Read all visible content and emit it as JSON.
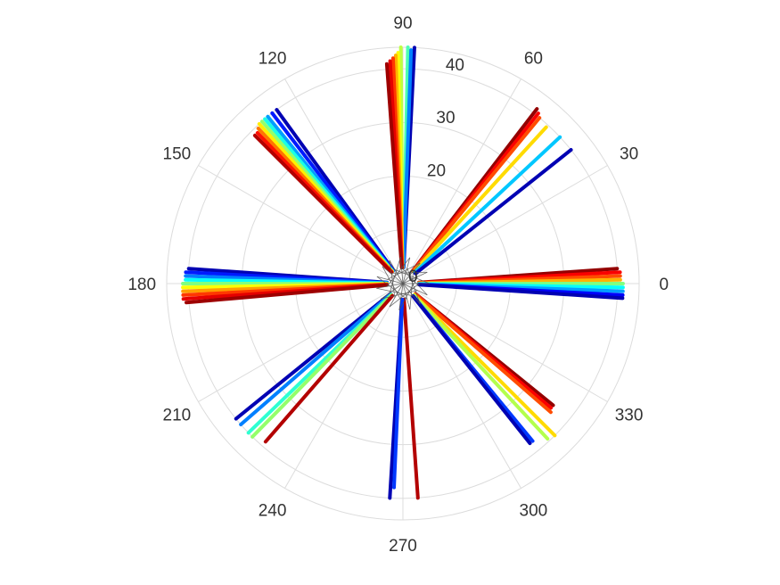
{
  "chart_data": {
    "type": "scatter",
    "subtype": "polar",
    "title": "",
    "angle_ticks": [
      0,
      30,
      60,
      90,
      120,
      150,
      180,
      210,
      240,
      270,
      300,
      330
    ],
    "angle_tick_labels": [
      "0",
      "30",
      "60",
      "90",
      "120",
      "150",
      "180",
      "210",
      "240",
      "270",
      "300",
      "330"
    ],
    "radial_ticks": [
      0,
      10,
      20,
      30,
      40
    ],
    "radial_tick_labels": [
      "0",
      "",
      "20",
      "30",
      "40"
    ],
    "radial_label_angle_deg": 80,
    "r_range": [
      0,
      44
    ],
    "grid": true,
    "colormap": "jet",
    "color_range": [
      0,
      1
    ],
    "rays": [
      {
        "angle": 90.5,
        "r_start": 3,
        "r_end": 44,
        "color_value": 0.56
      },
      {
        "angle": 88.8,
        "r_start": 3,
        "r_end": 44,
        "color_value": 0.45
      },
      {
        "angle": 87.2,
        "r_start": 3,
        "r_end": 44,
        "color_value": 0.05
      },
      {
        "angle": 88.0,
        "r_start": 3,
        "r_end": 43.5,
        "color_value": 0.25
      },
      {
        "angle": 91.2,
        "r_start": 3,
        "r_end": 43,
        "color_value": 0.62
      },
      {
        "angle": 91.8,
        "r_start": 3,
        "r_end": 42.5,
        "color_value": 0.7
      },
      {
        "angle": 92.5,
        "r_start": 3,
        "r_end": 42,
        "color_value": 0.82
      },
      {
        "angle": 93.3,
        "r_start": 3,
        "r_end": 41.5,
        "color_value": 0.9
      },
      {
        "angle": 94.2,
        "r_start": 3,
        "r_end": 41,
        "color_value": 0.97
      },
      {
        "angle": 52.5,
        "r_start": 3,
        "r_end": 41,
        "color_value": 0.98
      },
      {
        "angle": 51.5,
        "r_start": 3,
        "r_end": 40.5,
        "color_value": 0.88
      },
      {
        "angle": 50.5,
        "r_start": 3,
        "r_end": 40,
        "color_value": 0.8
      },
      {
        "angle": 47.5,
        "r_start": 3,
        "r_end": 39.5,
        "color_value": 0.66
      },
      {
        "angle": 43.0,
        "r_start": 3,
        "r_end": 40,
        "color_value": 0.32
      },
      {
        "angle": 38.5,
        "r_start": 3,
        "r_end": 40,
        "color_value": 0.05
      },
      {
        "angle": 4.0,
        "r_start": 3,
        "r_end": 40,
        "color_value": 0.98
      },
      {
        "angle": 3.0,
        "r_start": 3,
        "r_end": 40.5,
        "color_value": 0.88
      },
      {
        "angle": 2.0,
        "r_start": 3,
        "r_end": 40.5,
        "color_value": 0.8
      },
      {
        "angle": 1.0,
        "r_start": 3,
        "r_end": 40.5,
        "color_value": 0.7
      },
      {
        "angle": 0.0,
        "r_start": 3,
        "r_end": 41,
        "color_value": 0.5
      },
      {
        "angle": -1.0,
        "r_start": 3,
        "r_end": 41,
        "color_value": 0.38
      },
      {
        "angle": -2.0,
        "r_start": 3,
        "r_end": 41,
        "color_value": 0.28
      },
      {
        "angle": -3.0,
        "r_start": 3,
        "r_end": 41,
        "color_value": 0.12
      },
      {
        "angle": -3.8,
        "r_start": 3,
        "r_end": 41,
        "color_value": 0.05
      },
      {
        "angle": -39.0,
        "r_start": 3,
        "r_end": 36,
        "color_value": 0.98
      },
      {
        "angle": -40.0,
        "r_start": 3,
        "r_end": 36,
        "color_value": 0.88
      },
      {
        "angle": -41.0,
        "r_start": 3,
        "r_end": 36.5,
        "color_value": 0.8
      },
      {
        "angle": -45.0,
        "r_start": 3,
        "r_end": 40,
        "color_value": 0.66
      },
      {
        "angle": -47.0,
        "r_start": 3,
        "r_end": 39.5,
        "color_value": 0.55
      },
      {
        "angle": -50.5,
        "r_start": 3,
        "r_end": 38,
        "color_value": 0.18
      },
      {
        "angle": -51.5,
        "r_start": 3,
        "r_end": 38,
        "color_value": 0.05
      },
      {
        "angle": -86.0,
        "r_start": 3,
        "r_end": 40,
        "color_value": 0.95
      },
      {
        "angle": -93.5,
        "r_start": 3,
        "r_end": 40,
        "color_value": 0.05
      },
      {
        "angle": -92.5,
        "r_start": 3,
        "r_end": 38,
        "color_value": 0.18
      },
      {
        "angle": 219.0,
        "r_start": 3,
        "r_end": 40,
        "color_value": 0.05
      },
      {
        "angle": 221.0,
        "r_start": 3,
        "r_end": 40,
        "color_value": 0.25
      },
      {
        "angle": 224.0,
        "r_start": 3,
        "r_end": 40,
        "color_value": 0.42
      },
      {
        "angle": 225.5,
        "r_start": 3,
        "r_end": 40,
        "color_value": 0.52
      },
      {
        "angle": 229.0,
        "r_start": 3,
        "r_end": 39,
        "color_value": 0.95
      },
      {
        "angle": 176.0,
        "r_start": 3,
        "r_end": 40,
        "color_value": 0.05
      },
      {
        "angle": 177.0,
        "r_start": 3,
        "r_end": 40.5,
        "color_value": 0.15
      },
      {
        "angle": 178.0,
        "r_start": 3,
        "r_end": 40.5,
        "color_value": 0.25
      },
      {
        "angle": 179.0,
        "r_start": 3,
        "r_end": 40.5,
        "color_value": 0.38
      },
      {
        "angle": 180.0,
        "r_start": 3,
        "r_end": 41,
        "color_value": 0.5
      },
      {
        "angle": 181.0,
        "r_start": 3,
        "r_end": 41,
        "color_value": 0.62
      },
      {
        "angle": 182.0,
        "r_start": 3,
        "r_end": 41,
        "color_value": 0.72
      },
      {
        "angle": 183.0,
        "r_start": 3,
        "r_end": 41,
        "color_value": 0.82
      },
      {
        "angle": 184.0,
        "r_start": 3,
        "r_end": 41,
        "color_value": 0.9
      },
      {
        "angle": 185.0,
        "r_start": 3,
        "r_end": 40.5,
        "color_value": 0.97
      },
      {
        "angle": 126.0,
        "r_start": 3,
        "r_end": 40,
        "color_value": 0.05
      },
      {
        "angle": 127.5,
        "r_start": 3,
        "r_end": 40,
        "color_value": 0.15
      },
      {
        "angle": 129.0,
        "r_start": 3,
        "r_end": 40,
        "color_value": 0.28
      },
      {
        "angle": 130.0,
        "r_start": 3,
        "r_end": 40,
        "color_value": 0.4
      },
      {
        "angle": 131.0,
        "r_start": 3,
        "r_end": 40,
        "color_value": 0.52
      },
      {
        "angle": 132.0,
        "r_start": 3,
        "r_end": 40,
        "color_value": 0.64
      },
      {
        "angle": 133.0,
        "r_start": 3,
        "r_end": 39.5,
        "color_value": 0.76
      },
      {
        "angle": 134.0,
        "r_start": 3,
        "r_end": 39,
        "color_value": 0.86
      },
      {
        "angle": 135.0,
        "r_start": 3,
        "r_end": 39,
        "color_value": 0.95
      }
    ],
    "center_spokes": [
      0,
      25,
      50,
      75,
      95,
      120,
      140,
      165,
      190,
      215,
      240,
      262,
      285,
      310,
      335
    ],
    "center_spoke_r": 5
  }
}
